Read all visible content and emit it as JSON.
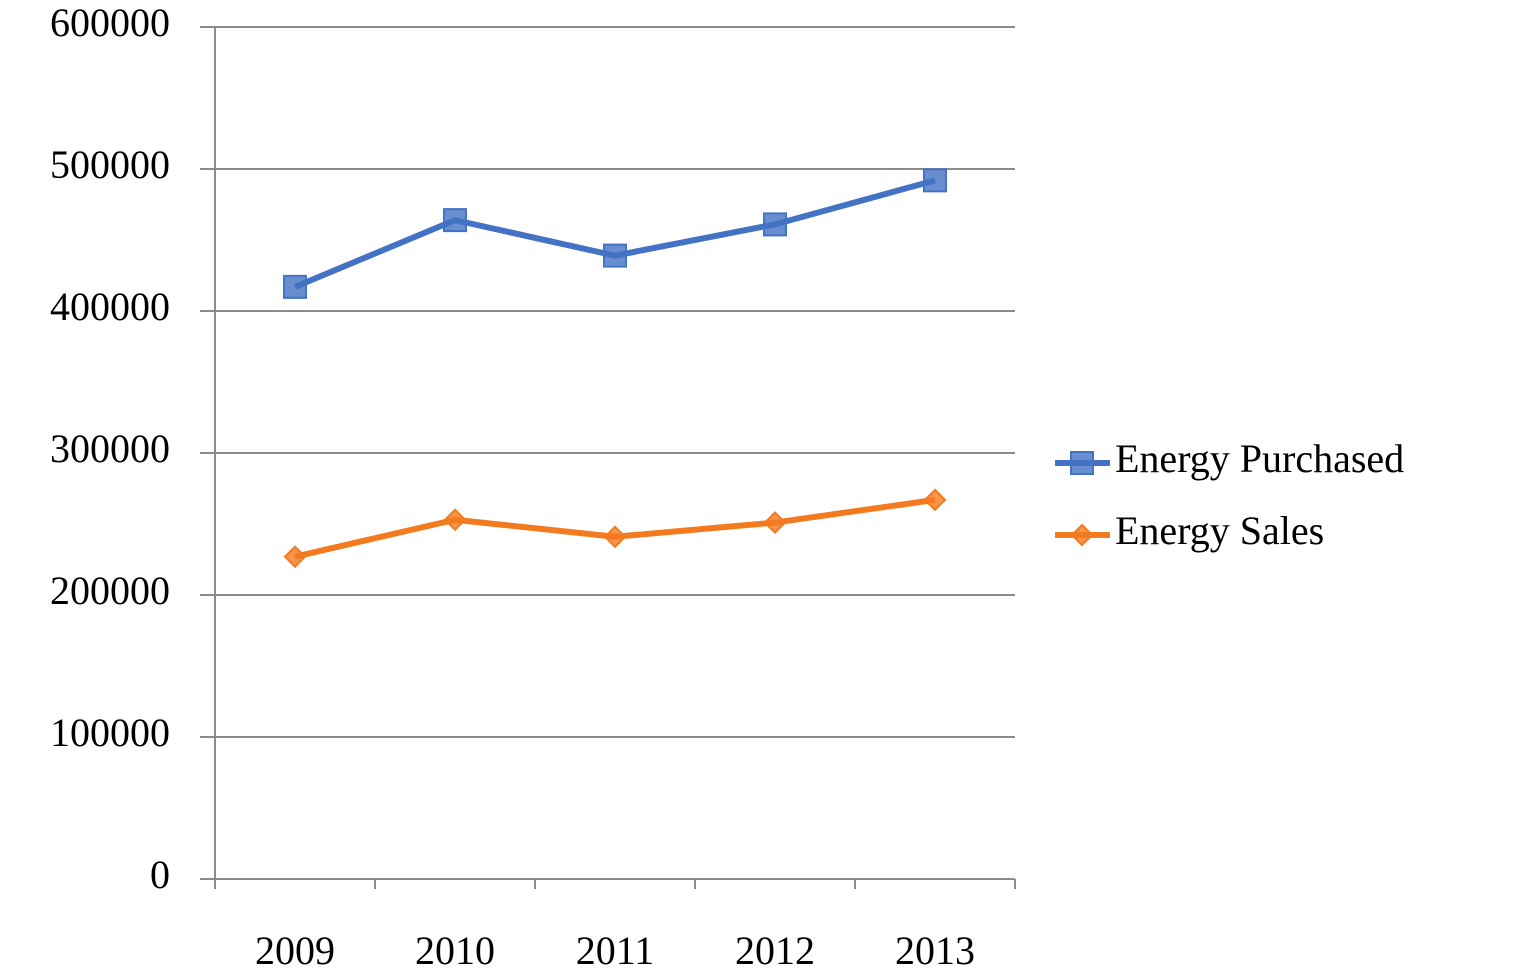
{
  "chart_data": {
    "type": "line",
    "categories": [
      "2009",
      "2010",
      "2011",
      "2012",
      "2013"
    ],
    "series": [
      {
        "name": "Energy Purchased",
        "color": "#4472c4",
        "marker": "square",
        "values": [
          417000,
          464000,
          439000,
          461000,
          492000
        ]
      },
      {
        "name": "Energy Sales",
        "color": "#f47a1f",
        "marker": "diamond",
        "values": [
          227000,
          253000,
          241000,
          251000,
          267000
        ]
      }
    ],
    "ylim": [
      0,
      600000
    ],
    "yticks": [
      0,
      100000,
      200000,
      300000,
      400000,
      500000,
      600000
    ],
    "grid": true,
    "legend": "right"
  }
}
